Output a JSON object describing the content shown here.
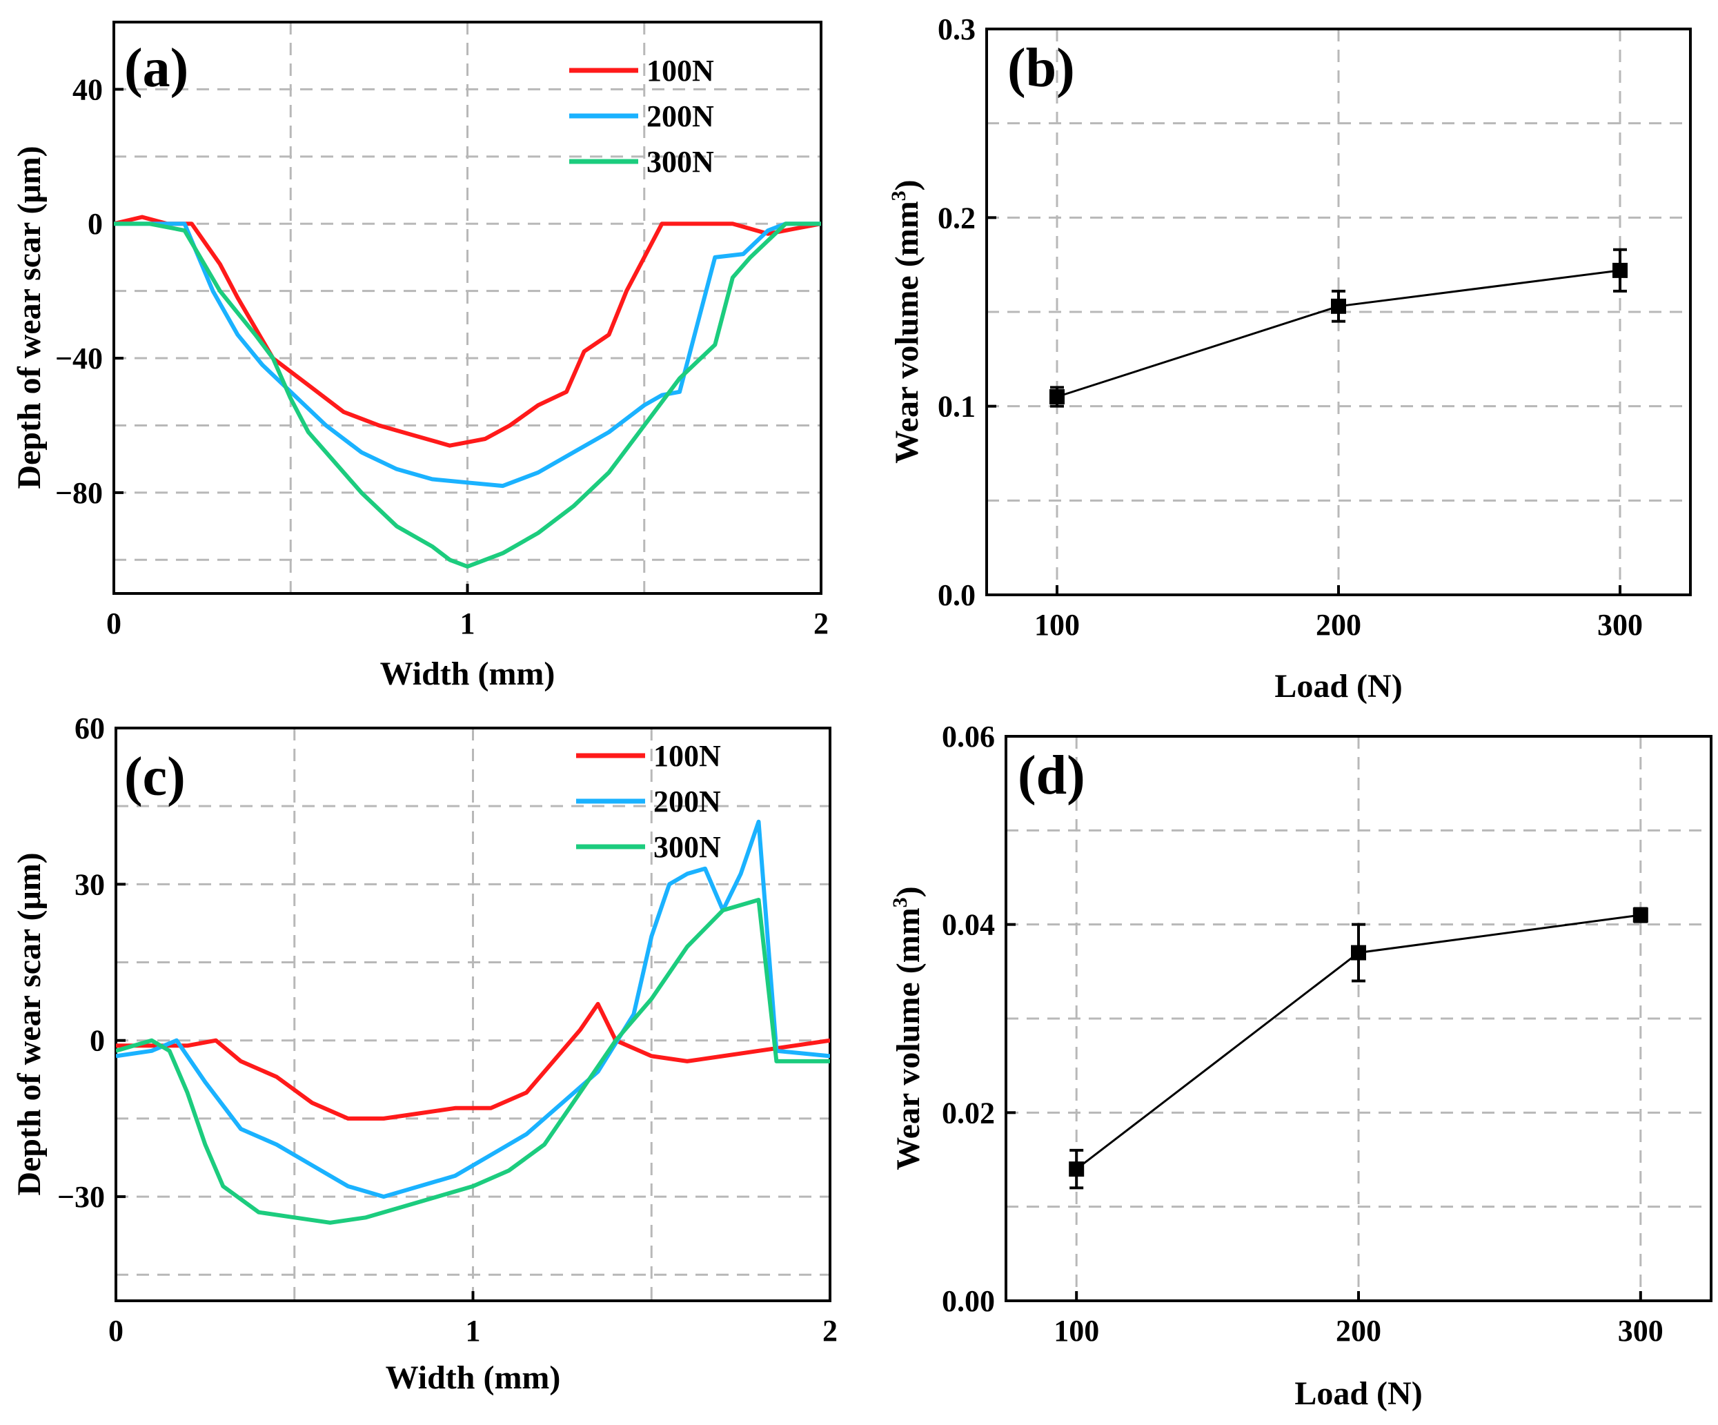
{
  "chart_data": [
    {
      "panel": "(a)",
      "type": "line",
      "xlabel": "Width (mm)",
      "ylabel": "Depth of wear scar (μm)",
      "xlim": [
        0,
        2
      ],
      "ylim": [
        -110,
        60
      ],
      "xticks": [
        0,
        1,
        2
      ],
      "yticks": [
        40,
        0,
        -40,
        -80
      ],
      "ytick_labels": [
        "40",
        "0",
        "−40",
        "−80"
      ],
      "grid": true,
      "legend": "top-right",
      "series": [
        {
          "name": "100N",
          "color": "#ff1a1a",
          "x": [
            0,
            0.08,
            0.15,
            0.22,
            0.3,
            0.35,
            0.45,
            0.55,
            0.65,
            0.75,
            0.85,
            0.95,
            1.05,
            1.12,
            1.2,
            1.28,
            1.33,
            1.4,
            1.45,
            1.5,
            1.55,
            1.65,
            1.75,
            1.85,
            2
          ],
          "y": [
            0,
            2,
            0,
            0,
            -12,
            -22,
            -40,
            -48,
            -56,
            -60,
            -63,
            -66,
            -64,
            -60,
            -54,
            -50,
            -38,
            -33,
            -20,
            -10,
            0,
            0,
            0,
            -3,
            0
          ]
        },
        {
          "name": "200N",
          "color": "#1ab2ff",
          "x": [
            0,
            0.1,
            0.2,
            0.28,
            0.35,
            0.42,
            0.5,
            0.6,
            0.7,
            0.8,
            0.9,
            1.0,
            1.1,
            1.2,
            1.3,
            1.4,
            1.5,
            1.55,
            1.6,
            1.65,
            1.7,
            1.78,
            1.85,
            1.9,
            2
          ],
          "y": [
            0,
            0,
            0,
            -20,
            -33,
            -42,
            -50,
            -60,
            -68,
            -73,
            -76,
            -77,
            -78,
            -74,
            -68,
            -62,
            -54,
            -51,
            -50,
            -30,
            -10,
            -9,
            -2,
            0,
            0
          ]
        },
        {
          "name": "300N",
          "color": "#1ccc7e",
          "x": [
            0,
            0.1,
            0.2,
            0.3,
            0.4,
            0.45,
            0.5,
            0.55,
            0.6,
            0.7,
            0.8,
            0.9,
            0.95,
            1.0,
            1.05,
            1.1,
            1.2,
            1.3,
            1.4,
            1.5,
            1.6,
            1.7,
            1.75,
            1.8,
            1.9,
            2
          ],
          "y": [
            0,
            0,
            -2,
            -20,
            -33,
            -40,
            -52,
            -62,
            -68,
            -80,
            -90,
            -96,
            -100,
            -102,
            -100,
            -98,
            -92,
            -84,
            -74,
            -60,
            -46,
            -36,
            -16,
            -10,
            0,
            0
          ]
        }
      ]
    },
    {
      "panel": "(b)",
      "type": "scatter",
      "xlabel": "Load (N)",
      "ylabel": "Wear volume (mm",
      "ylabel_sup": "3",
      "ylabel_end": ")",
      "xlim": [
        75,
        325
      ],
      "ylim": [
        0,
        0.3
      ],
      "xticks": [
        100,
        200,
        300
      ],
      "yticks": [
        0.0,
        0.1,
        0.2,
        0.3
      ],
      "ytick_labels": [
        "0.0",
        "0.1",
        "0.2",
        "0.3"
      ],
      "grid": true,
      "x": [
        100,
        200,
        300
      ],
      "values": [
        0.105,
        0.153,
        0.172
      ],
      "errors": [
        0.005,
        0.008,
        0.011
      ]
    },
    {
      "panel": "(c)",
      "type": "line",
      "xlabel": "Width (mm)",
      "ylabel": "Depth of wear scar (μm)",
      "xlim": [
        0,
        2
      ],
      "ylim": [
        -50,
        60
      ],
      "xticks": [
        0,
        1,
        2
      ],
      "yticks": [
        60,
        30,
        0,
        -30
      ],
      "ytick_labels": [
        "60",
        "30",
        "0",
        "−30"
      ],
      "grid": true,
      "legend": "top-right",
      "series": [
        {
          "name": "100N",
          "color": "#ff1a1a",
          "x": [
            0,
            0.1,
            0.2,
            0.28,
            0.35,
            0.45,
            0.55,
            0.65,
            0.75,
            0.85,
            0.95,
            1.05,
            1.15,
            1.25,
            1.3,
            1.35,
            1.4,
            1.5,
            1.6,
            1.7,
            1.8,
            1.9,
            2
          ],
          "y": [
            -1,
            -1,
            -1,
            0,
            -4,
            -7,
            -12,
            -15,
            -15,
            -14,
            -13,
            -13,
            -10,
            -2,
            2,
            7,
            0,
            -3,
            -4,
            -3,
            -2,
            -1,
            0
          ]
        },
        {
          "name": "200N",
          "color": "#1ab2ff",
          "x": [
            0,
            0.1,
            0.17,
            0.25,
            0.35,
            0.45,
            0.55,
            0.65,
            0.75,
            0.85,
            0.95,
            1.05,
            1.15,
            1.25,
            1.35,
            1.45,
            1.5,
            1.55,
            1.6,
            1.65,
            1.7,
            1.75,
            1.8,
            1.85,
            2
          ],
          "y": [
            -3,
            -2,
            0,
            -8,
            -17,
            -20,
            -24,
            -28,
            -30,
            -28,
            -26,
            -22,
            -18,
            -12,
            -6,
            5,
            20,
            30,
            32,
            33,
            25,
            32,
            42,
            -2,
            -3
          ]
        },
        {
          "name": "300N",
          "color": "#1ccc7e",
          "x": [
            0,
            0.05,
            0.1,
            0.15,
            0.2,
            0.25,
            0.3,
            0.4,
            0.5,
            0.6,
            0.7,
            0.8,
            0.9,
            1.0,
            1.1,
            1.2,
            1.3,
            1.4,
            1.5,
            1.6,
            1.7,
            1.8,
            1.85,
            2
          ],
          "y": [
            -2,
            -1,
            0,
            -2,
            -10,
            -20,
            -28,
            -33,
            -34,
            -35,
            -34,
            -32,
            -30,
            -28,
            -25,
            -20,
            -10,
            0,
            8,
            18,
            25,
            27,
            -4,
            -4
          ]
        }
      ]
    },
    {
      "panel": "(d)",
      "type": "scatter",
      "xlabel": "Load (N)",
      "ylabel": "Wear volume (mm",
      "ylabel_sup": "3",
      "ylabel_end": ")",
      "xlim": [
        75,
        325
      ],
      "ylim": [
        0,
        0.06
      ],
      "xticks": [
        100,
        200,
        300
      ],
      "yticks": [
        0.0,
        0.02,
        0.04,
        0.06
      ],
      "ytick_labels": [
        "0.00",
        "0.02",
        "0.04",
        "0.06"
      ],
      "grid": true,
      "x": [
        100,
        200,
        300
      ],
      "values": [
        0.014,
        0.037,
        0.041
      ],
      "errors": [
        0.002,
        0.003,
        0.0007
      ]
    }
  ]
}
